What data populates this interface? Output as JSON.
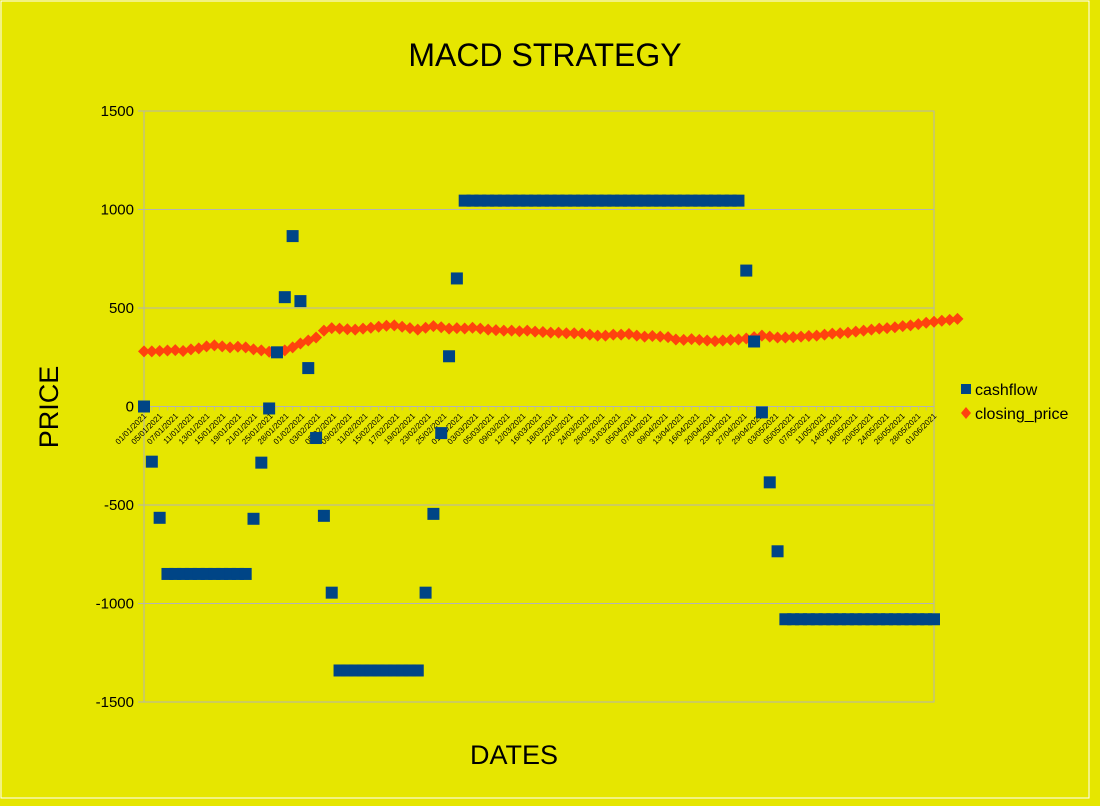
{
  "colors": {
    "background": "#e6e600",
    "cashflow": "#004586",
    "closing_price": "#ff420e",
    "grid": "#b3b3b3",
    "frame": "#ffffff"
  },
  "chart_data": {
    "type": "scatter",
    "title": "MACD STRATEGY",
    "xlabel": "DATES",
    "ylabel": "PRICE",
    "ylim": [
      -1500,
      1500
    ],
    "yticks": [
      -1500,
      -1000,
      -500,
      0,
      500,
      1000,
      1500
    ],
    "grid": "horizontal",
    "legend_position": "right",
    "x_tick_labels": [
      "01/01/2021",
      "05/01/2021",
      "07/01/2021",
      "11/01/2021",
      "13/01/2021",
      "15/01/2021",
      "19/01/2021",
      "21/01/2021",
      "25/01/2021",
      "28/01/2021",
      "01/02/2021",
      "03/02/2021",
      "05/02/2021",
      "09/02/2021",
      "11/02/2021",
      "15/02/2021",
      "17/02/2021",
      "19/02/2021",
      "23/02/2021",
      "25/02/2021",
      "01/03/2021",
      "03/03/2021",
      "05/03/2021",
      "09/03/2021",
      "12/03/2021",
      "16/03/2021",
      "18/03/2021",
      "22/03/2021",
      "24/03/2021",
      "26/03/2021",
      "31/03/2021",
      "05/04/2021",
      "07/04/2021",
      "09/04/2021",
      "13/04/2021",
      "16/04/2021",
      "20/04/2021",
      "23/04/2021",
      "27/04/2021",
      "29/04/2021",
      "03/05/2021",
      "05/05/2021",
      "07/05/2021",
      "11/05/2021",
      "14/05/2021",
      "18/05/2021",
      "20/05/2021",
      "24/05/2021",
      "26/05/2021",
      "28/05/2021",
      "01/06/2021"
    ],
    "series": [
      {
        "name": "cashflow",
        "marker": "square",
        "values": [
          0,
          -280,
          -565,
          -850,
          -850,
          -850,
          -850,
          -850,
          -850,
          -850,
          -850,
          -850,
          -850,
          -850,
          -570,
          -285,
          -10,
          275,
          555,
          865,
          535,
          195,
          -160,
          -555,
          -945,
          -1340,
          -1340,
          -1340,
          -1340,
          -1340,
          -1340,
          -1340,
          -1340,
          -1340,
          -1340,
          -1340,
          -945,
          -545,
          -135,
          255,
          650,
          1045,
          1045,
          1045,
          1045,
          1045,
          1045,
          1045,
          1045,
          1045,
          1045,
          1045,
          1045,
          1045,
          1045,
          1045,
          1045,
          1045,
          1045,
          1045,
          1045,
          1045,
          1045,
          1045,
          1045,
          1045,
          1045,
          1045,
          1045,
          1045,
          1045,
          1045,
          1045,
          1045,
          1045,
          1045,
          1045,
          690,
          330,
          -30,
          -385,
          -735,
          -1080,
          -1080,
          -1080,
          -1080,
          -1080,
          -1080,
          -1080,
          -1080,
          -1080,
          -1080,
          -1080,
          -1080,
          -1080,
          -1080,
          -1080,
          -1080,
          -1080,
          -1080,
          -1080,
          -1080
        ]
      },
      {
        "name": "closing_price",
        "marker": "diamond",
        "values": [
          280,
          280,
          282,
          284,
          286,
          282,
          290,
          295,
          305,
          310,
          305,
          300,
          303,
          300,
          290,
          285,
          278,
          275,
          285,
          300,
          320,
          335,
          350,
          385,
          398,
          395,
          392,
          390,
          395,
          400,
          405,
          410,
          412,
          405,
          398,
          390,
          400,
          408,
          402,
          395,
          398,
          396,
          400,
          395,
          390,
          388,
          385,
          385,
          382,
          385,
          380,
          378,
          375,
          375,
          372,
          372,
          370,
          365,
          360,
          360,
          365,
          365,
          368,
          360,
          355,
          358,
          355,
          352,
          340,
          338,
          342,
          338,
          335,
          332,
          335,
          338,
          340,
          345,
          352,
          360,
          355,
          350,
          350,
          352,
          355,
          358,
          360,
          365,
          370,
          372,
          375,
          380,
          385,
          390,
          395,
          398,
          402,
          408,
          412,
          418,
          425,
          430,
          435,
          440,
          445
        ]
      }
    ]
  }
}
